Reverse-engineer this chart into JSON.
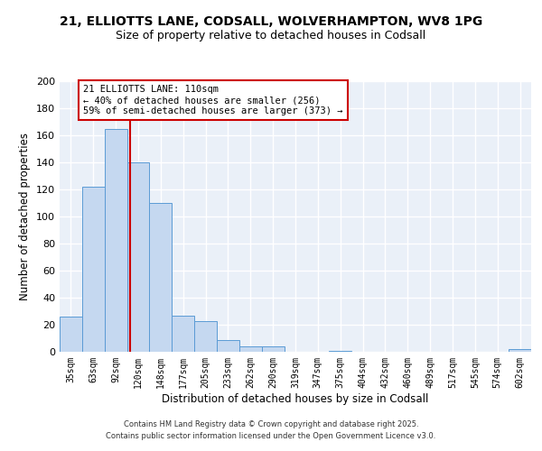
{
  "title1": "21, ELLIOTTS LANE, CODSALL, WOLVERHAMPTON, WV8 1PG",
  "title2": "Size of property relative to detached houses in Codsall",
  "xlabel": "Distribution of detached houses by size in Codsall",
  "ylabel": "Number of detached properties",
  "bar_color": "#c5d8f0",
  "bar_edge_color": "#5b9bd5",
  "bg_color": "#eaf0f8",
  "grid_color": "#ffffff",
  "annotation_box_label": "21 ELLIOTTS LANE: 110sqm",
  "annotation_line1": "← 40% of detached houses are smaller (256)",
  "annotation_line2": "59% of semi-detached houses are larger (373) →",
  "annotation_border_color": "#cc0000",
  "property_line_color": "#cc0000",
  "categories": [
    "35sqm",
    "63sqm",
    "92sqm",
    "120sqm",
    "148sqm",
    "177sqm",
    "205sqm",
    "233sqm",
    "262sqm",
    "290sqm",
    "319sqm",
    "347sqm",
    "375sqm",
    "404sqm",
    "432sqm",
    "460sqm",
    "489sqm",
    "517sqm",
    "545sqm",
    "574sqm",
    "602sqm"
  ],
  "values": [
    26,
    122,
    165,
    140,
    110,
    27,
    23,
    9,
    4,
    4,
    0,
    0,
    1,
    0,
    0,
    0,
    0,
    0,
    0,
    0,
    2
  ],
  "ylim": [
    0,
    200
  ],
  "yticks": [
    0,
    20,
    40,
    60,
    80,
    100,
    120,
    140,
    160,
    180,
    200
  ],
  "footer1": "Contains HM Land Registry data © Crown copyright and database right 2025.",
  "footer2": "Contains public sector information licensed under the Open Government Licence v3.0."
}
